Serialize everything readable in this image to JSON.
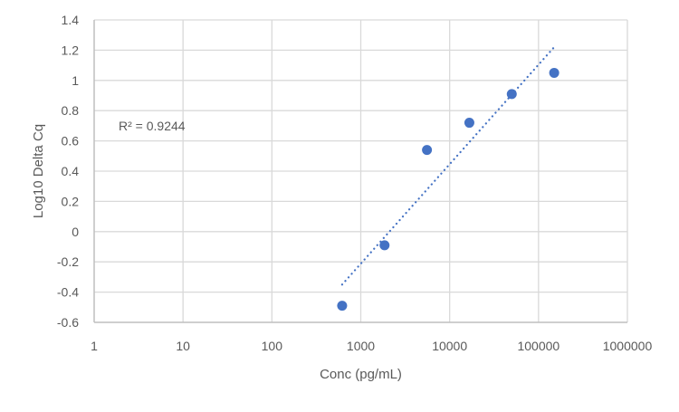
{
  "chart_data": {
    "type": "scatter",
    "title": "",
    "xlabel": "Conc (pg/mL)",
    "ylabel": "Log10 Delta Cq",
    "x_scale": "log",
    "xlim": [
      1,
      1000000
    ],
    "ylim": [
      -0.6,
      1.4
    ],
    "x_ticks": [
      "1",
      "10",
      "100",
      "1000",
      "10000",
      "100000",
      "1000000"
    ],
    "y_ticks": [
      "1.4",
      "1.2",
      "1",
      "0.8",
      "0.6",
      "0.4",
      "0.2",
      "0",
      "-0.2",
      "-0.4",
      "-0.6"
    ],
    "grid": true,
    "legend": null,
    "series": [
      {
        "name": "Log10 Delta Cq",
        "color": "#4472C4",
        "marker": "circle",
        "points": [
          {
            "x": 617,
            "y": -0.49
          },
          {
            "x": 1852,
            "y": -0.09
          },
          {
            "x": 5556,
            "y": 0.54
          },
          {
            "x": 16667,
            "y": 0.72
          },
          {
            "x": 50000,
            "y": 0.91
          },
          {
            "x": 150000,
            "y": 1.05
          }
        ]
      }
    ],
    "trendline": {
      "type": "logarithmic",
      "style": "dotted",
      "color": "#4472C4",
      "x_start": 617,
      "y_start": -0.35,
      "x_end": 150000,
      "y_end": 1.22,
      "r_squared_label": "R² = 0.9244"
    },
    "annotations": [
      {
        "text": "R² = 0.9244",
        "x": 2.5,
        "y": 0.7
      }
    ]
  },
  "colors": {
    "series": "#4472C4",
    "grid": "#D9D9D9",
    "axis_text": "#595959"
  }
}
